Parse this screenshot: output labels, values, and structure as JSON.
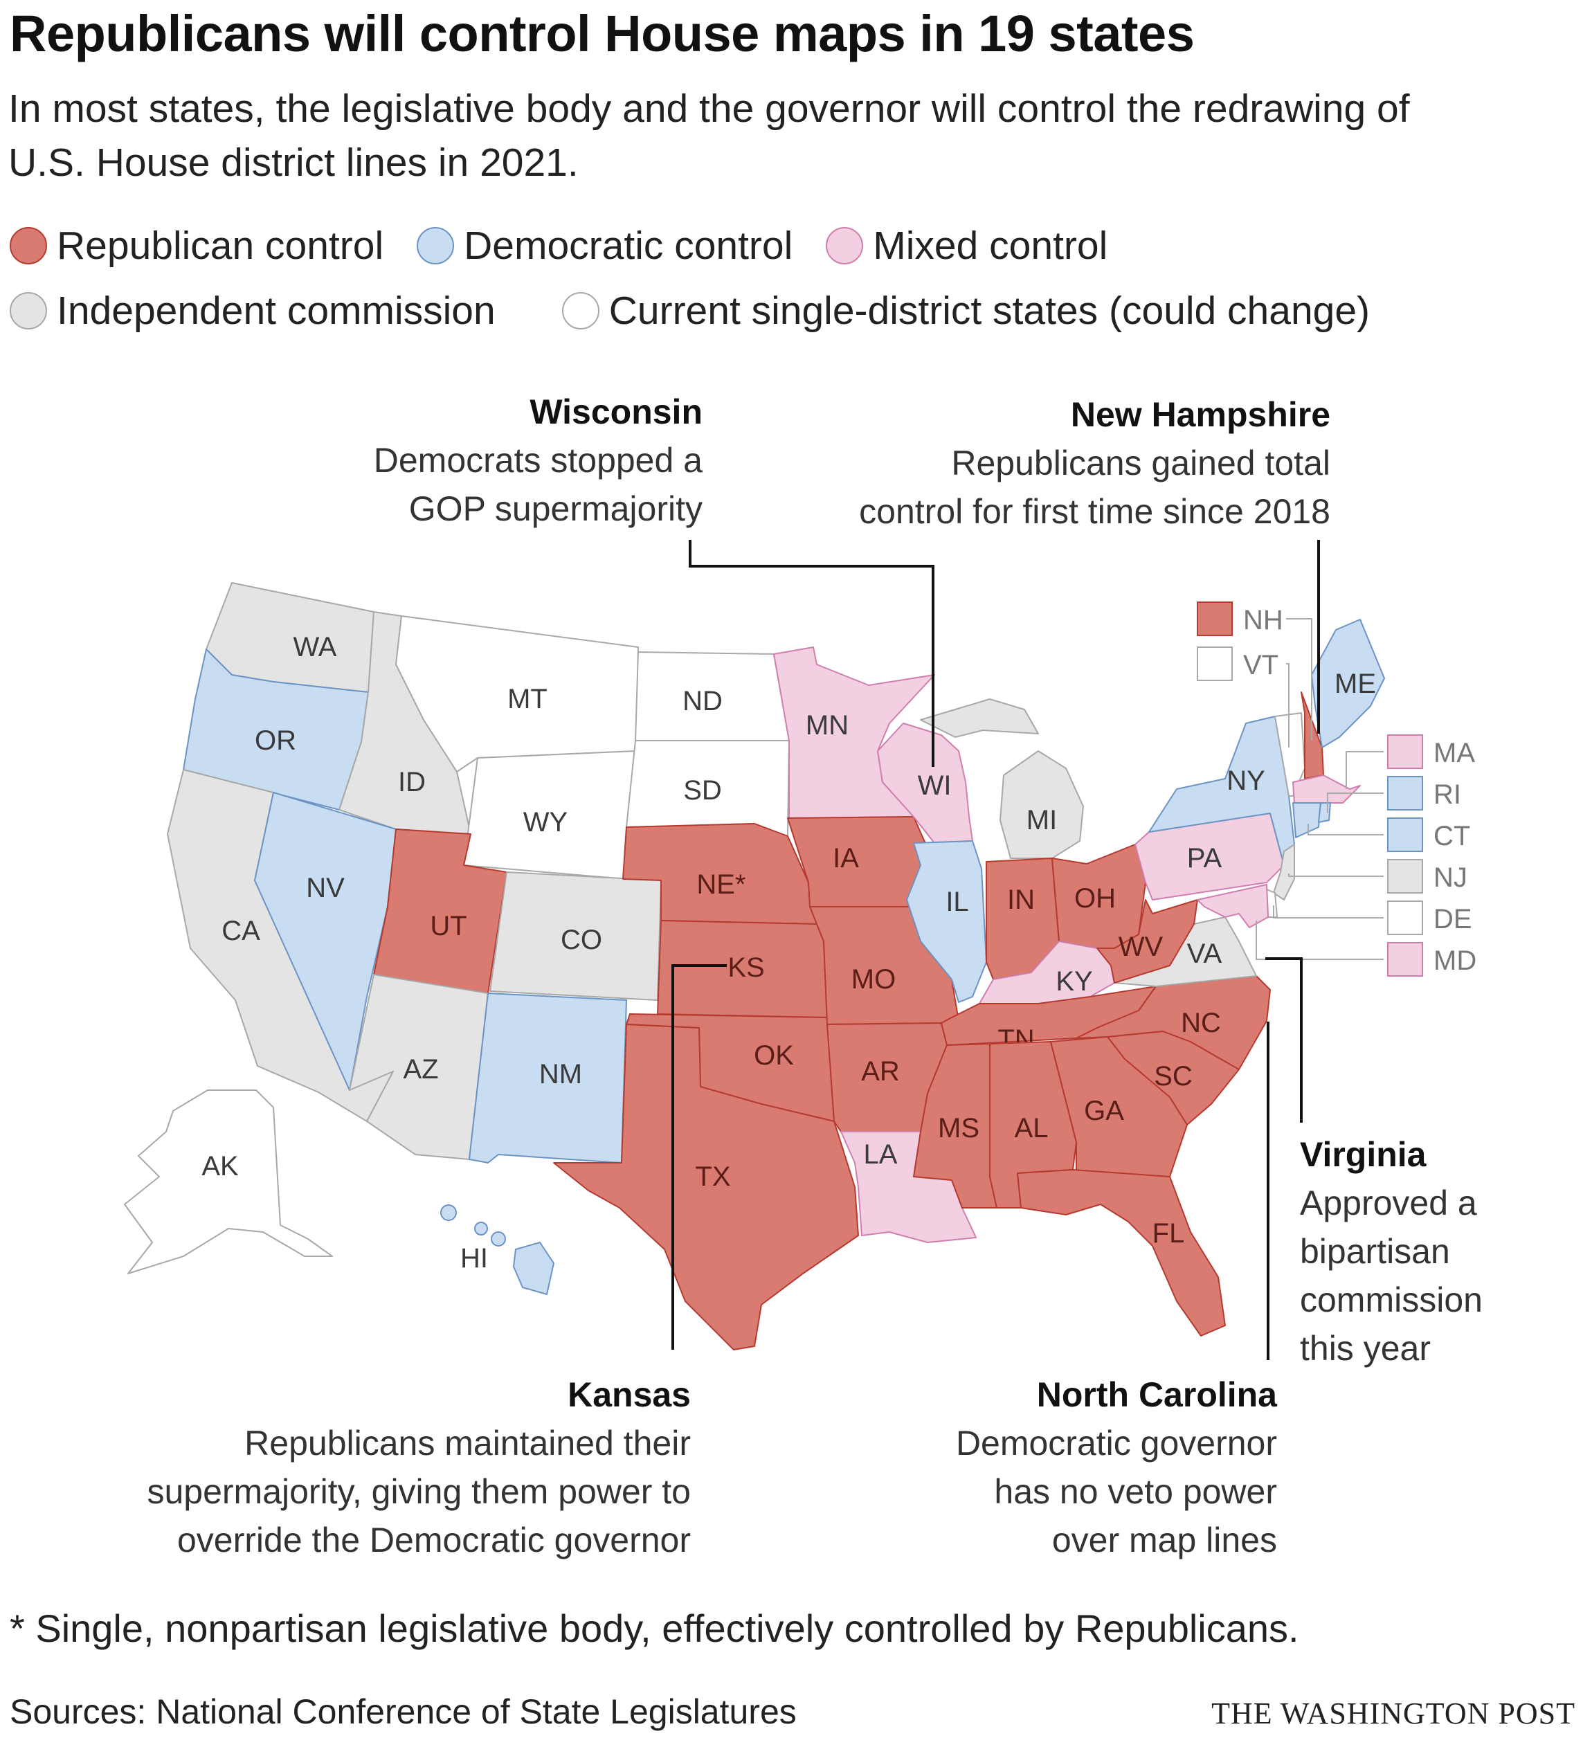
{
  "title": "Republicans will control House maps in 19 states",
  "subtitle": "In most states, the legislative body and the governor will control the redrawing of U.S. House district lines in 2021.",
  "colors": {
    "republican": "#d97b70",
    "democratic": "#c8ddf1",
    "mixed": "#f3cfe2",
    "commission": "#e4e4e4",
    "single": "#ffffff",
    "rep_stroke": "#b53a30",
    "dem_stroke": "#6b93c4",
    "mixed_stroke": "#cf7fae",
    "gray_stroke": "#a8a8a8"
  },
  "legend": [
    {
      "key": "republican",
      "label": "Republican control"
    },
    {
      "key": "democratic",
      "label": "Democratic control"
    },
    {
      "key": "mixed",
      "label": "Mixed control"
    },
    {
      "key": "commission",
      "label": "Independent commission"
    },
    {
      "key": "single",
      "label": "Current single-district states (could change)"
    }
  ],
  "states": [
    {
      "id": "WA",
      "category": "commission"
    },
    {
      "id": "OR",
      "category": "democratic"
    },
    {
      "id": "CA",
      "category": "commission"
    },
    {
      "id": "ID",
      "category": "commission"
    },
    {
      "id": "NV",
      "category": "democratic"
    },
    {
      "id": "MT",
      "category": "single"
    },
    {
      "id": "WY",
      "category": "single"
    },
    {
      "id": "UT",
      "category": "republican"
    },
    {
      "id": "AZ",
      "category": "commission"
    },
    {
      "id": "CO",
      "category": "commission"
    },
    {
      "id": "NM",
      "category": "democratic"
    },
    {
      "id": "ND",
      "category": "single"
    },
    {
      "id": "SD",
      "category": "single"
    },
    {
      "id": "NE*",
      "category": "republican"
    },
    {
      "id": "KS",
      "category": "republican"
    },
    {
      "id": "OK",
      "category": "republican"
    },
    {
      "id": "TX",
      "category": "republican"
    },
    {
      "id": "MN",
      "category": "mixed"
    },
    {
      "id": "IA",
      "category": "republican"
    },
    {
      "id": "MO",
      "category": "republican"
    },
    {
      "id": "AR",
      "category": "republican"
    },
    {
      "id": "LA",
      "category": "mixed"
    },
    {
      "id": "WI",
      "category": "mixed"
    },
    {
      "id": "IL",
      "category": "democratic"
    },
    {
      "id": "MI",
      "category": "commission"
    },
    {
      "id": "IN",
      "category": "republican"
    },
    {
      "id": "OH",
      "category": "republican"
    },
    {
      "id": "KY",
      "category": "mixed"
    },
    {
      "id": "TN",
      "category": "republican"
    },
    {
      "id": "MS",
      "category": "republican"
    },
    {
      "id": "AL",
      "category": "republican"
    },
    {
      "id": "GA",
      "category": "republican"
    },
    {
      "id": "FL",
      "category": "republican"
    },
    {
      "id": "SC",
      "category": "republican"
    },
    {
      "id": "NC",
      "category": "republican"
    },
    {
      "id": "VA",
      "category": "commission"
    },
    {
      "id": "WV",
      "category": "republican"
    },
    {
      "id": "PA",
      "category": "mixed"
    },
    {
      "id": "NY",
      "category": "democratic"
    },
    {
      "id": "ME",
      "category": "democratic"
    },
    {
      "id": "AK",
      "category": "single"
    },
    {
      "id": "HI",
      "category": "democratic"
    }
  ],
  "small_states": [
    {
      "id": "NH",
      "category": "republican"
    },
    {
      "id": "VT",
      "category": "single"
    },
    {
      "id": "MA",
      "category": "mixed"
    },
    {
      "id": "RI",
      "category": "democratic"
    },
    {
      "id": "CT",
      "category": "democratic"
    },
    {
      "id": "NJ",
      "category": "commission"
    },
    {
      "id": "DE",
      "category": "single"
    },
    {
      "id": "MD",
      "category": "mixed"
    }
  ],
  "annotations": {
    "wisconsin": {
      "title": "Wisconsin",
      "lines": [
        "Democrats stopped a",
        "GOP supermajority"
      ]
    },
    "new_hampshire": {
      "title": "New Hampshire",
      "lines": [
        "Republicans gained total",
        "control for first time since 2018"
      ]
    },
    "virginia": {
      "title": "Virginia",
      "lines": [
        "Approved a",
        "bipartisan",
        "commission",
        "this year"
      ]
    },
    "kansas": {
      "title": "Kansas",
      "lines": [
        "Republicans maintained their",
        "supermajority, giving them power to",
        "override the Democratic governor"
      ]
    },
    "north_carolina": {
      "title": "North Carolina",
      "lines": [
        "Democratic governor",
        "has no veto power",
        "over map lines"
      ]
    }
  },
  "footnote": "* Single, nonpartisan legislative body, effectively controlled by Republicans.",
  "source": "Sources: National Conference of State Legislatures",
  "credit": "THE WASHINGTON POST"
}
